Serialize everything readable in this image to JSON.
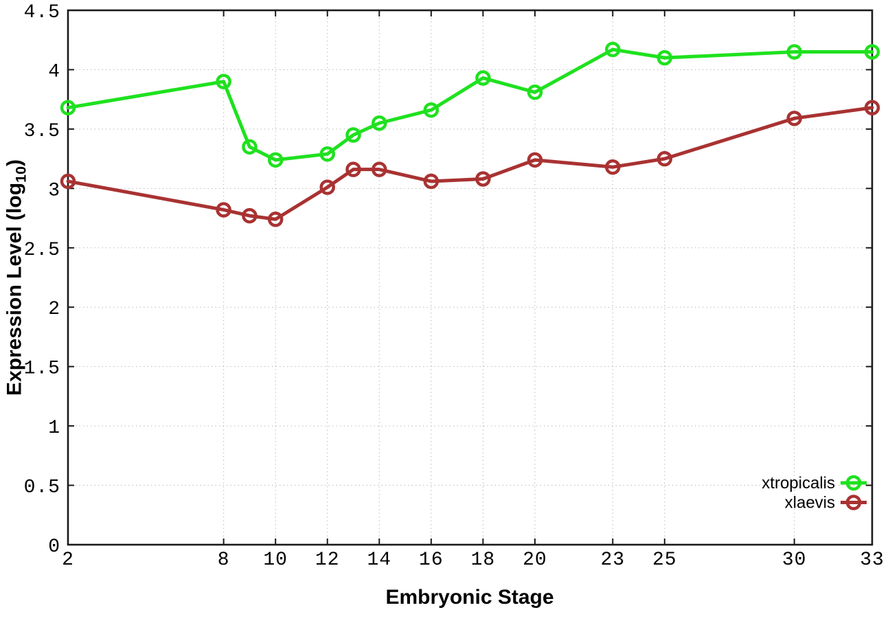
{
  "chart_data": {
    "type": "line",
    "title": "",
    "xlabel": "Embryonic Stage",
    "ylabel": "Expression Level (log10)",
    "ylabel_parts": {
      "main": "Expression Level (log",
      "sub": "10",
      "close": ")"
    },
    "xlim": [
      2,
      33
    ],
    "ylim": [
      0,
      4.5
    ],
    "x_ticks": [
      2,
      8,
      10,
      12,
      14,
      16,
      18,
      20,
      23,
      25,
      30,
      33
    ],
    "x_tick_labels": [
      "2",
      "8",
      "10",
      "12",
      "14",
      "16",
      "18",
      "20",
      "23",
      "25",
      "30",
      "33"
    ],
    "y_ticks": [
      0,
      0.5,
      1,
      1.5,
      2,
      2.5,
      3,
      3.5,
      4,
      4.5
    ],
    "y_tick_labels": [
      "0",
      "0.5",
      "1",
      "1.5",
      "2",
      "2.5",
      "3",
      "3.5",
      "4",
      "4.5"
    ],
    "grid": true,
    "marker": "open-circle",
    "legend_position": "inside-bottom-right",
    "x": [
      2,
      8,
      9,
      10,
      12,
      13,
      14,
      16,
      18,
      20,
      23,
      25,
      30,
      33
    ],
    "series": [
      {
        "name": "xtropicalis",
        "color": "#1fe11f",
        "values": [
          3.68,
          3.9,
          3.35,
          3.24,
          3.29,
          3.45,
          3.55,
          3.66,
          3.93,
          3.81,
          4.17,
          4.1,
          4.15,
          4.15
        ]
      },
      {
        "name": "xlaevis",
        "color": "#a93232",
        "values": [
          3.06,
          2.82,
          2.77,
          2.74,
          3.01,
          3.16,
          3.16,
          3.06,
          3.08,
          3.24,
          3.18,
          3.25,
          3.59,
          3.68
        ]
      }
    ]
  }
}
